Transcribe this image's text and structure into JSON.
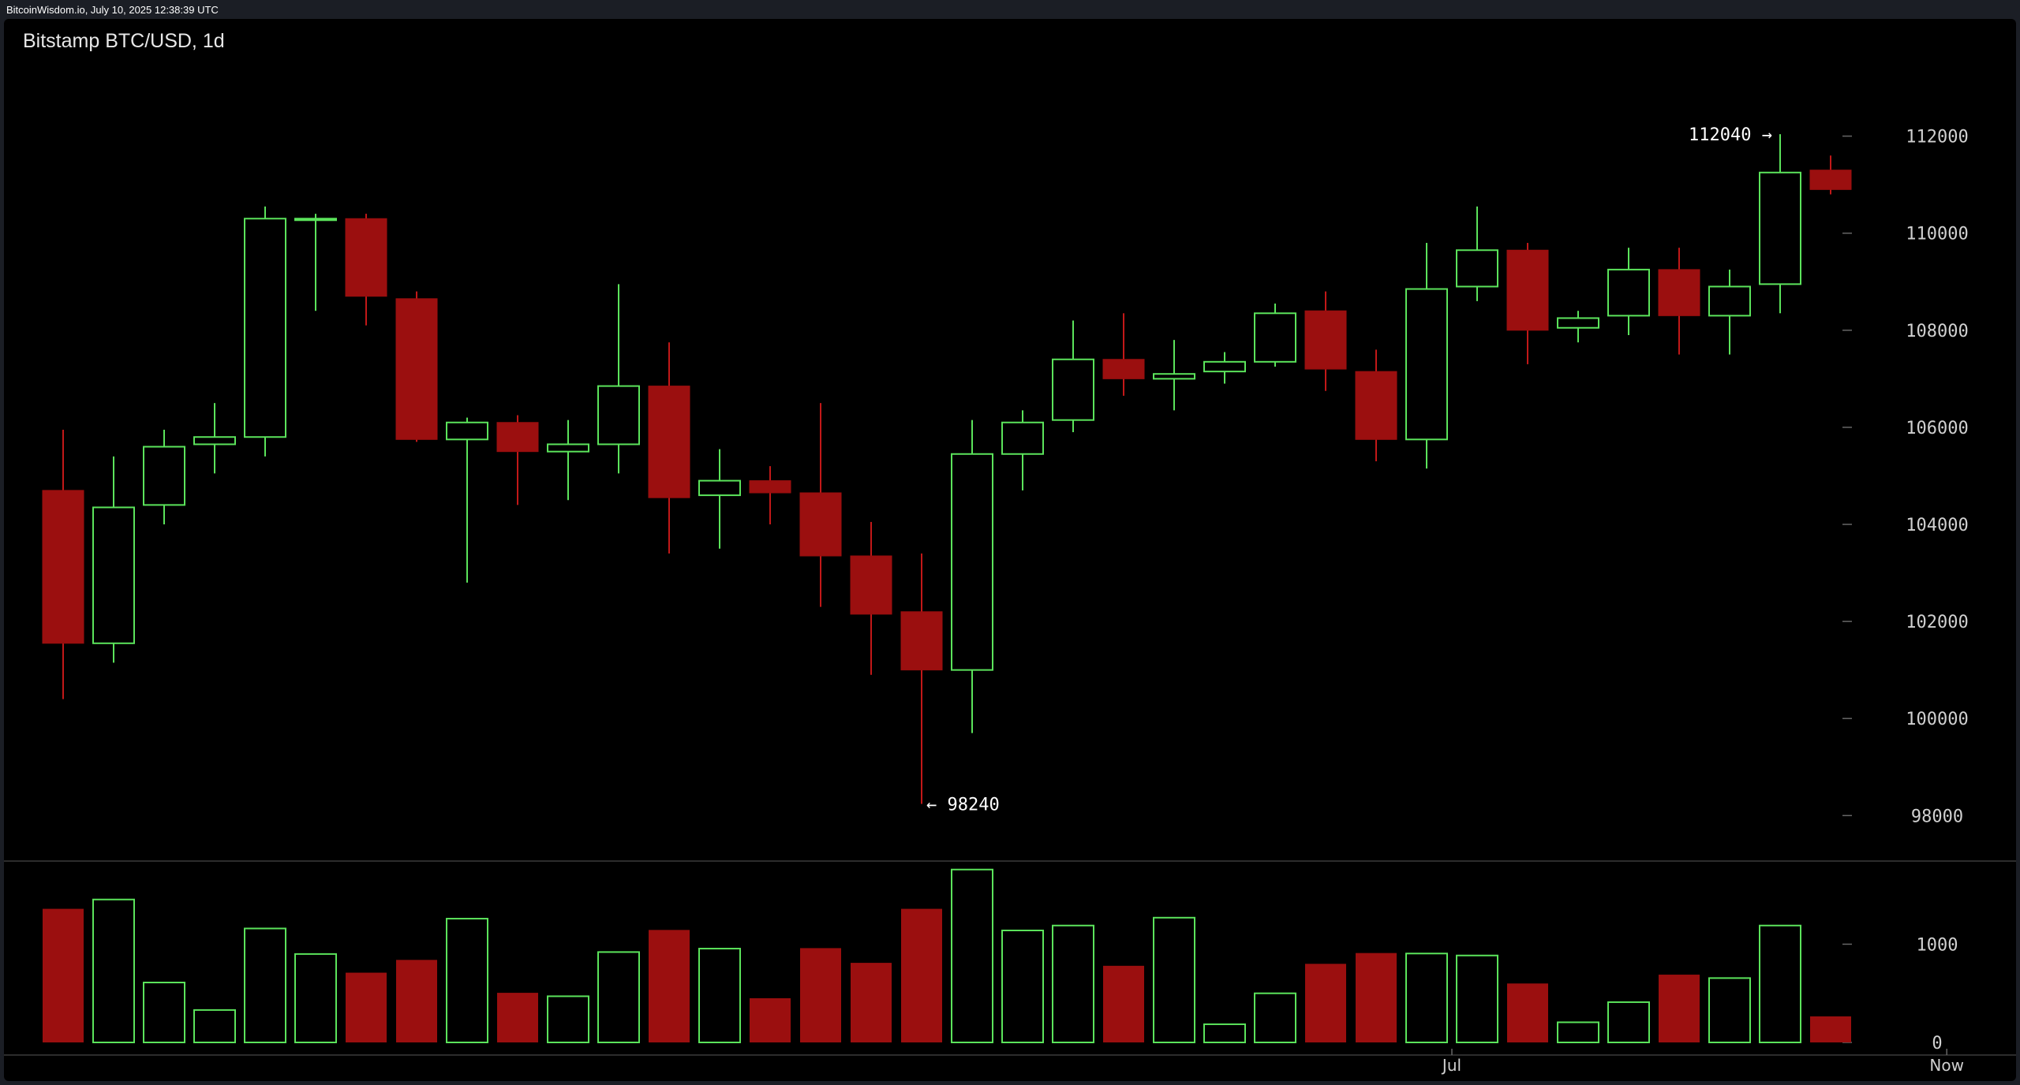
{
  "source_stamp": "BitcoinWisdom.io, July 10, 2025 12:38:39 UTC",
  "chart_data": {
    "type": "candlestick",
    "title": "Bitstamp BTC/USD, 1d",
    "interval": "1d",
    "price_axis": {
      "ylim": [
        96900,
        113700
      ],
      "ticks": [
        98000,
        100000,
        102000,
        104000,
        106000,
        108000,
        110000,
        112000
      ],
      "position": "right"
    },
    "volume_axis": {
      "ylim": [
        0,
        1750
      ],
      "ticks": [
        0,
        1000
      ],
      "position": "right"
    },
    "time_labels": [
      {
        "label": "Jul",
        "candle_index": 27.5
      },
      {
        "label": "Now",
        "candle_index": 37.3
      }
    ],
    "colors": {
      "up": "#5be35b",
      "down": "#9b0f0f",
      "down_wick": "#c21818",
      "background": "#000000",
      "divider": "#3a3a3a"
    },
    "candles": [
      {
        "o": 104700,
        "h": 105950,
        "l": 100400,
        "c": 101550,
        "v": 1360
      },
      {
        "o": 101550,
        "h": 105400,
        "l": 101150,
        "c": 104350,
        "v": 1455
      },
      {
        "o": 104400,
        "h": 105950,
        "l": 104000,
        "c": 105600,
        "v": 610
      },
      {
        "o": 105650,
        "h": 106500,
        "l": 105050,
        "c": 105800,
        "v": 330
      },
      {
        "o": 105800,
        "h": 110550,
        "l": 105400,
        "c": 110300,
        "v": 1160
      },
      {
        "o": 110300,
        "h": 110400,
        "l": 108400,
        "c": 110300,
        "v": 900
      },
      {
        "o": 110300,
        "h": 110400,
        "l": 108100,
        "c": 108700,
        "v": 710
      },
      {
        "o": 108650,
        "h": 108800,
        "l": 105700,
        "c": 105750,
        "v": 840
      },
      {
        "o": 105750,
        "h": 106200,
        "l": 102800,
        "c": 106100,
        "v": 1260
      },
      {
        "o": 106100,
        "h": 106250,
        "l": 104400,
        "c": 105500,
        "v": 505
      },
      {
        "o": 105500,
        "h": 106150,
        "l": 104500,
        "c": 105650,
        "v": 470
      },
      {
        "o": 105650,
        "h": 108950,
        "l": 105050,
        "c": 106850,
        "v": 920
      },
      {
        "o": 106850,
        "h": 107750,
        "l": 103400,
        "c": 104550,
        "v": 1145
      },
      {
        "o": 104600,
        "h": 105550,
        "l": 103500,
        "c": 104900,
        "v": 955
      },
      {
        "o": 104900,
        "h": 105200,
        "l": 104000,
        "c": 104650,
        "v": 450
      },
      {
        "o": 104650,
        "h": 106500,
        "l": 102300,
        "c": 103350,
        "v": 960
      },
      {
        "o": 103350,
        "h": 104050,
        "l": 100900,
        "c": 102150,
        "v": 810
      },
      {
        "o": 102200,
        "h": 103400,
        "l": 98240,
        "c": 101000,
        "v": 1360
      },
      {
        "o": 101000,
        "h": 106150,
        "l": 99700,
        "c": 105450,
        "v": 1760
      },
      {
        "o": 105450,
        "h": 106350,
        "l": 104700,
        "c": 106100,
        "v": 1140
      },
      {
        "o": 106150,
        "h": 108200,
        "l": 105900,
        "c": 107400,
        "v": 1190
      },
      {
        "o": 107400,
        "h": 108350,
        "l": 106650,
        "c": 107000,
        "v": 780
      },
      {
        "o": 107000,
        "h": 107800,
        "l": 106350,
        "c": 107100,
        "v": 1270
      },
      {
        "o": 107150,
        "h": 107550,
        "l": 106900,
        "c": 107350,
        "v": 185
      },
      {
        "o": 107350,
        "h": 108550,
        "l": 107250,
        "c": 108350,
        "v": 500
      },
      {
        "o": 108400,
        "h": 108800,
        "l": 106750,
        "c": 107200,
        "v": 800
      },
      {
        "o": 107150,
        "h": 107600,
        "l": 105300,
        "c": 105750,
        "v": 910
      },
      {
        "o": 105750,
        "h": 109800,
        "l": 105150,
        "c": 108850,
        "v": 905
      },
      {
        "o": 108900,
        "h": 110550,
        "l": 108600,
        "c": 109650,
        "v": 885
      },
      {
        "o": 109650,
        "h": 109800,
        "l": 107300,
        "c": 108000,
        "v": 600
      },
      {
        "o": 108050,
        "h": 108400,
        "l": 107750,
        "c": 108250,
        "v": 205
      },
      {
        "o": 108300,
        "h": 109700,
        "l": 107900,
        "c": 109250,
        "v": 410
      },
      {
        "o": 109250,
        "h": 109700,
        "l": 107500,
        "c": 108300,
        "v": 690
      },
      {
        "o": 108300,
        "h": 109250,
        "l": 107500,
        "c": 108900,
        "v": 655
      },
      {
        "o": 108950,
        "h": 112040,
        "l": 108350,
        "c": 111250,
        "v": 1190
      },
      {
        "o": 111300,
        "h": 111600,
        "l": 110800,
        "c": 110900,
        "v": 265
      }
    ],
    "annotations": [
      {
        "label": "112040 →",
        "price": 112040,
        "candle_index": 34,
        "side": "left"
      },
      {
        "label": "← 98240",
        "price": 98240,
        "candle_index": 17,
        "side": "right"
      }
    ]
  }
}
